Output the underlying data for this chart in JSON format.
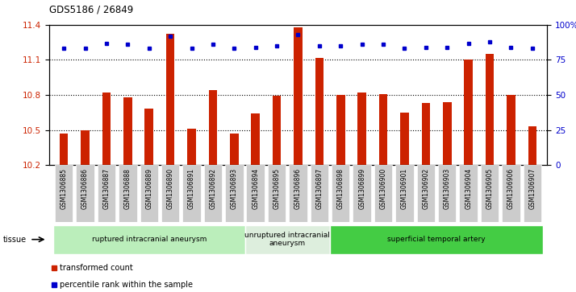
{
  "title": "GDS5186 / 26849",
  "samples": [
    "GSM1306885",
    "GSM1306886",
    "GSM1306887",
    "GSM1306888",
    "GSM1306889",
    "GSM1306890",
    "GSM1306891",
    "GSM1306892",
    "GSM1306893",
    "GSM1306894",
    "GSM1306895",
    "GSM1306896",
    "GSM1306897",
    "GSM1306898",
    "GSM1306899",
    "GSM1306900",
    "GSM1306901",
    "GSM1306902",
    "GSM1306903",
    "GSM1306904",
    "GSM1306905",
    "GSM1306906",
    "GSM1306907"
  ],
  "transformed_count": [
    10.47,
    10.5,
    10.82,
    10.78,
    10.68,
    11.32,
    10.51,
    10.84,
    10.47,
    10.64,
    10.79,
    11.38,
    11.12,
    10.8,
    10.82,
    10.81,
    10.65,
    10.73,
    10.74,
    11.1,
    11.15,
    10.8,
    10.53
  ],
  "percentile_rank": [
    83,
    83,
    87,
    86,
    83,
    92,
    83,
    86,
    83,
    84,
    85,
    93,
    85,
    85,
    86,
    86,
    83,
    84,
    84,
    87,
    88,
    84,
    83
  ],
  "ylim_left": [
    10.2,
    11.4
  ],
  "ylim_right": [
    0,
    100
  ],
  "yticks_left": [
    10.2,
    10.5,
    10.8,
    11.1,
    11.4
  ],
  "yticks_right": [
    0,
    25,
    50,
    75,
    100
  ],
  "bar_color": "#cc2200",
  "dot_color": "#0000cc",
  "groups": [
    {
      "label": "ruptured intracranial aneurysm",
      "start": 0,
      "end": 9,
      "color": "#bbeebb"
    },
    {
      "label": "unruptured intracranial\naneurysm",
      "start": 9,
      "end": 13,
      "color": "#ddeedd"
    },
    {
      "label": "superficial temporal artery",
      "start": 13,
      "end": 23,
      "color": "#44cc44"
    }
  ],
  "legend_bar_label": "transformed count",
  "legend_dot_label": "percentile rank within the sample",
  "tissue_label": "tissue",
  "tick_bg_color": "#cccccc",
  "plot_bg_color": "#ffffff"
}
